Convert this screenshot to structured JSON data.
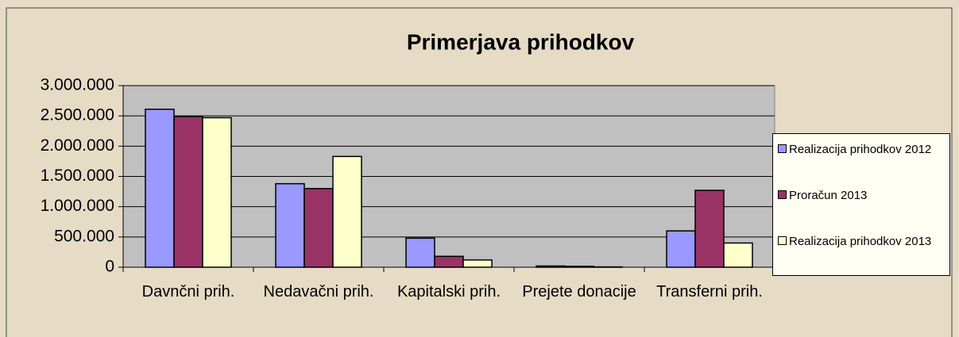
{
  "chart_data": {
    "type": "bar",
    "title": "Primerjava prihodkov",
    "categories": [
      "Davnčni prih.",
      "Nedavačni prih.",
      "Kapitalski prih.",
      "Prejete donacije",
      "Transferni prih."
    ],
    "series": [
      {
        "name": "Realizacija prihodkov 2012",
        "color": "#9999ff",
        "values": [
          2610000,
          1380000,
          480000,
          20000,
          600000
        ]
      },
      {
        "name": "Proračun 2013",
        "color": "#993366",
        "values": [
          2490000,
          1300000,
          180000,
          15000,
          1270000
        ]
      },
      {
        "name": "Realizacija prihodkov 2013",
        "color": "#ffffcc",
        "values": [
          2470000,
          1830000,
          120000,
          5000,
          400000
        ]
      }
    ],
    "ylim": [
      0,
      3000000
    ],
    "yticks": [
      0,
      {
        "value": 500000,
        "label": "500.000"
      },
      {
        "value": 1000000,
        "label": "1.000.000"
      },
      {
        "value": 1500000,
        "label": "1.500.000"
      },
      {
        "value": 2000000,
        "label": "2.000.000"
      },
      {
        "value": 2500000,
        "label": "2.500.000"
      },
      {
        "value": 3000000,
        "label": "3.000.000"
      }
    ],
    "grid": true,
    "legend": "right"
  }
}
